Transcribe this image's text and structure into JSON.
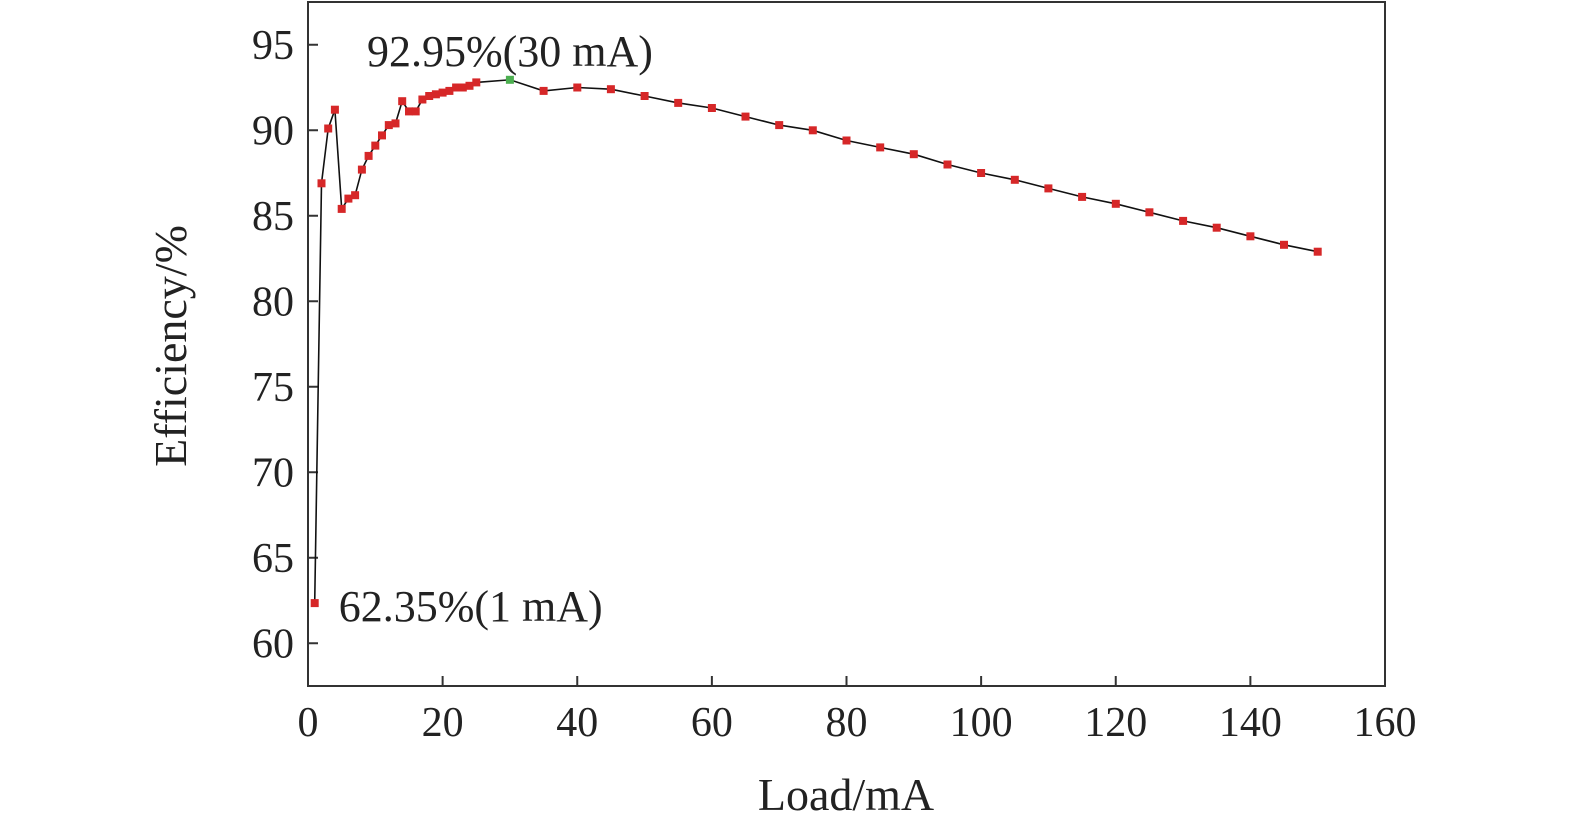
{
  "chart_data": {
    "type": "line",
    "title": "",
    "xlabel": "Load/mA",
    "ylabel": "Efficiency/%",
    "xlim": [
      0,
      160
    ],
    "ylim": [
      57.5,
      97.5
    ],
    "xticks": [
      0,
      20,
      40,
      60,
      80,
      100,
      120,
      140,
      160
    ],
    "yticks": [
      60,
      65,
      70,
      75,
      80,
      85,
      90,
      95
    ],
    "grid": false,
    "legend": "none",
    "line_color": "#111111",
    "marker_color": "#d62728",
    "highlight_color": "#4caf50",
    "series": [
      {
        "x": [
          1,
          2,
          3,
          4,
          5,
          6,
          7,
          8,
          9,
          10,
          11,
          12,
          13,
          14,
          15,
          16,
          17,
          18,
          19,
          20,
          21,
          22,
          23,
          24,
          25,
          30,
          35,
          40,
          45,
          50,
          55,
          60,
          65,
          70,
          75,
          80,
          85,
          90,
          95,
          100,
          105,
          110,
          115,
          120,
          125,
          130,
          135,
          140,
          145,
          150
        ],
        "y": [
          62.35,
          86.9,
          90.1,
          91.2,
          85.4,
          86.0,
          86.2,
          87.7,
          88.5,
          89.1,
          89.7,
          90.3,
          90.4,
          91.7,
          91.1,
          91.1,
          91.8,
          92.0,
          92.1,
          92.2,
          92.3,
          92.5,
          92.5,
          92.6,
          92.8,
          92.95,
          92.3,
          92.5,
          92.4,
          92.0,
          91.6,
          91.3,
          90.8,
          90.3,
          90.0,
          89.4,
          89.0,
          88.6,
          88.0,
          87.5,
          87.1,
          86.6,
          86.1,
          85.7,
          85.2,
          84.7,
          84.3,
          83.8,
          83.3,
          82.9
        ]
      }
    ],
    "highlight_point": {
      "x": 30,
      "y": 92.95
    },
    "annotations": [
      {
        "text": "92.95%(30 mA)",
        "x": 30,
        "y": 92.95
      },
      {
        "text": "62.35%(1 mA)",
        "x": 1,
        "y": 62.35
      }
    ]
  }
}
